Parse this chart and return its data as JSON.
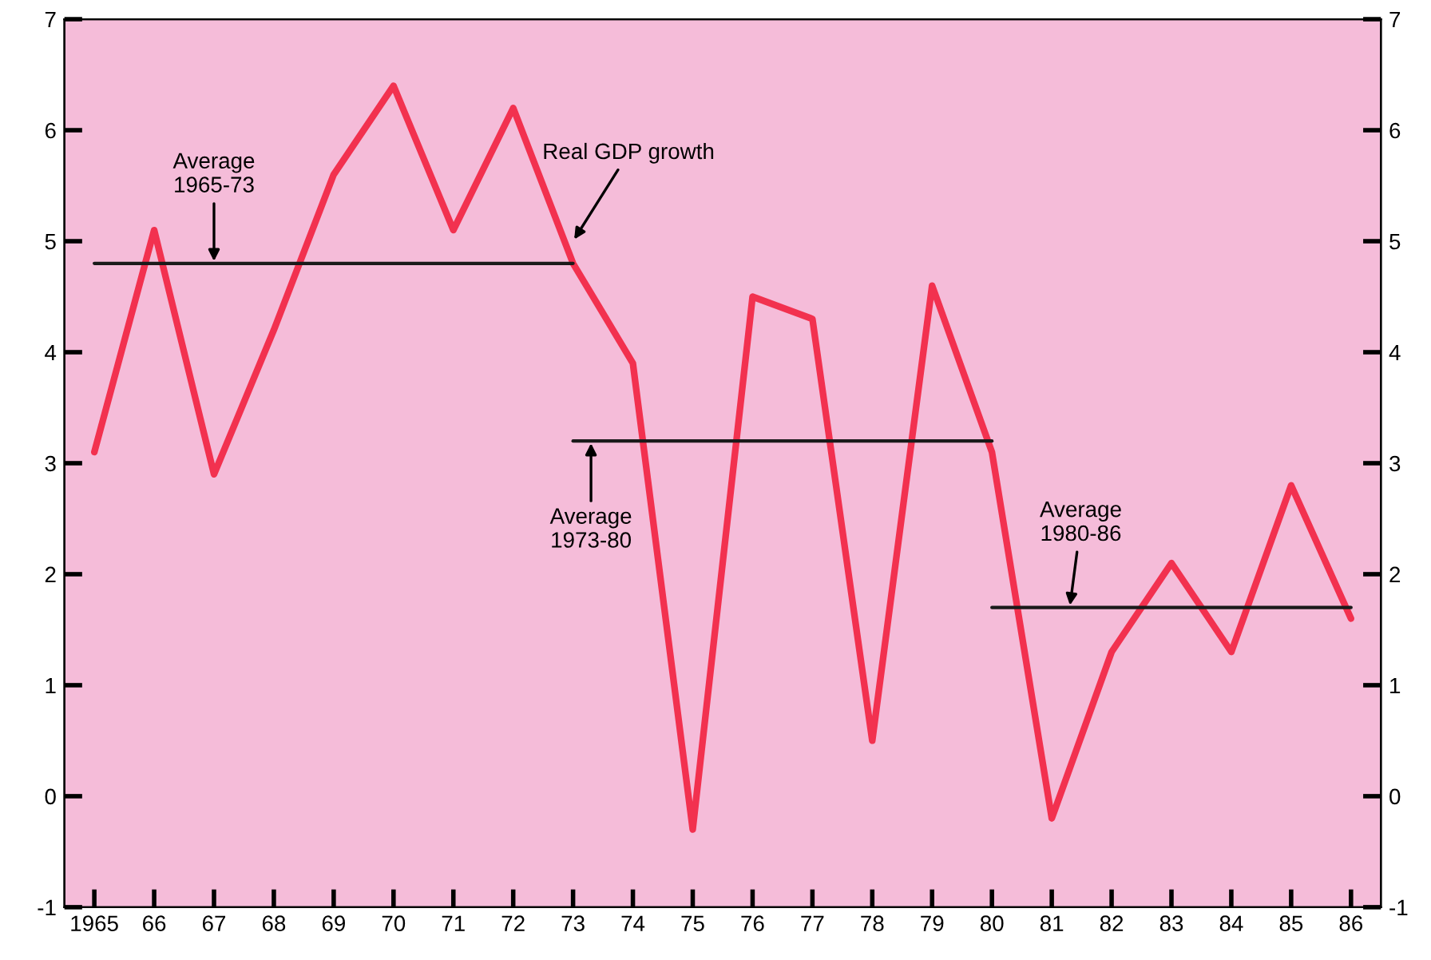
{
  "chart_data": {
    "type": "line",
    "x": [
      1965,
      1966,
      1967,
      1968,
      1969,
      1970,
      1971,
      1972,
      1973,
      1974,
      1975,
      1976,
      1977,
      1978,
      1979,
      1980,
      1981,
      1982,
      1983,
      1984,
      1985,
      1986
    ],
    "series": [
      {
        "color": "#f2314f",
        "values": [
          3.1,
          5.1,
          2.9,
          4.2,
          5.6,
          6.4,
          5.1,
          6.2,
          4.8,
          3.9,
          -0.3,
          4.5,
          4.3,
          0.5,
          4.6,
          3.1,
          -0.2,
          1.3,
          2.1,
          1.3,
          2.8,
          1.6
        ]
      },
      {
        "type": "line",
        "color": "#1a1a1a",
        "x": [
          1965,
          1973
        ],
        "values": [
          4.8,
          4.8
        ]
      },
      {
        "type": "line",
        "color": "#1a1a1a",
        "x": [
          1973,
          1980
        ],
        "values": [
          3.2,
          3.2
        ]
      },
      {
        "type": "line",
        "color": "#1a1a1a",
        "x": [
          1980,
          1986
        ],
        "values": [
          1.7,
          1.7
        ]
      }
    ],
    "annotations": [
      {
        "text": "Real GDP growth",
        "x": 1973,
        "y": 5.0
      },
      {
        "text": "Average\n1965-73",
        "x": 1967,
        "y": 4.8
      },
      {
        "text": "Average\n1973-80",
        "x": 1973.3,
        "y": 3.2
      },
      {
        "text": "Average\n1980-86",
        "x": 1981.3,
        "y": 1.7
      }
    ],
    "xlim": [
      1964.5,
      1986.5
    ],
    "xticks": [
      {
        "value": 1965,
        "label": "1965"
      },
      {
        "value": 1966,
        "label": "66"
      },
      {
        "value": 1967,
        "label": "67"
      },
      {
        "value": 1968,
        "label": "68"
      },
      {
        "value": 1969,
        "label": "69"
      },
      {
        "value": 1970,
        "label": "70"
      },
      {
        "value": 1971,
        "label": "71"
      },
      {
        "value": 1972,
        "label": "72"
      },
      {
        "value": 1973,
        "label": "73"
      },
      {
        "value": 1974,
        "label": "74"
      },
      {
        "value": 1975,
        "label": "75"
      },
      {
        "value": 1976,
        "label": "76"
      },
      {
        "value": 1977,
        "label": "77"
      },
      {
        "value": 1978,
        "label": "78"
      },
      {
        "value": 1979,
        "label": "79"
      },
      {
        "value": 1980,
        "label": "80"
      },
      {
        "value": 1981,
        "label": "81"
      },
      {
        "value": 1982,
        "label": "82"
      },
      {
        "value": 1983,
        "label": "83"
      },
      {
        "value": 1984,
        "label": "84"
      },
      {
        "value": 1985,
        "label": "85"
      },
      {
        "value": 1986,
        "label": "86"
      }
    ],
    "ylim": [
      -1,
      7
    ],
    "yticks": [
      -1,
      0,
      1,
      2,
      3,
      4,
      5,
      6,
      7
    ],
    "y2lim": [
      -1,
      7
    ],
    "y2ticks": [
      -1,
      0,
      1,
      2,
      3,
      4,
      5,
      6,
      7
    ],
    "grid": false,
    "legend": false
  }
}
